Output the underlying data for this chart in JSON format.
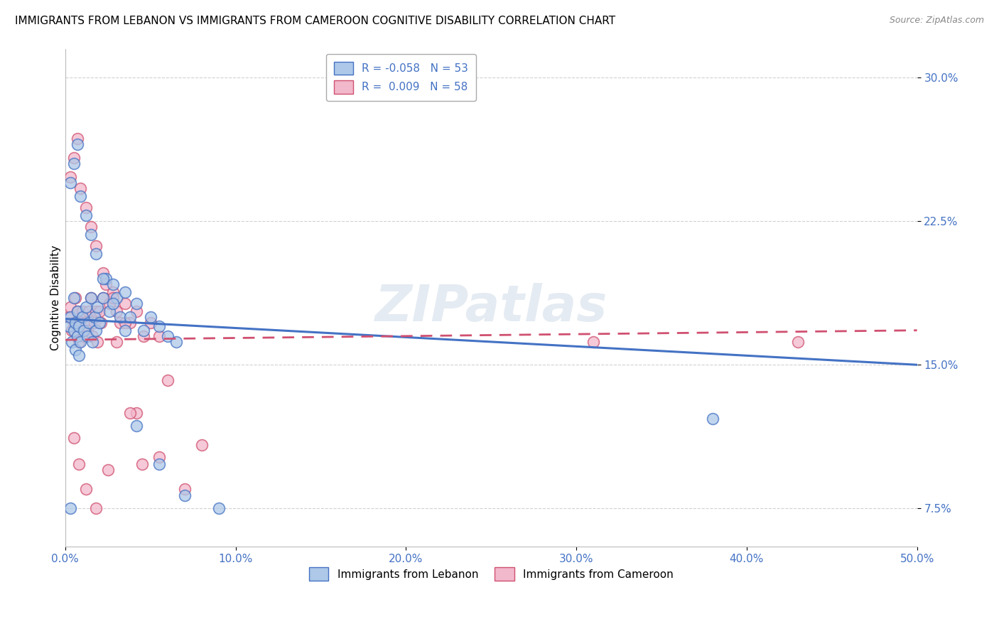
{
  "title": "IMMIGRANTS FROM LEBANON VS IMMIGRANTS FROM CAMEROON COGNITIVE DISABILITY CORRELATION CHART",
  "source": "Source: ZipAtlas.com",
  "ylabel": "Cognitive Disability",
  "legend_label1": "Immigrants from Lebanon",
  "legend_label2": "Immigrants from Cameroon",
  "R1": -0.058,
  "N1": 53,
  "R2": 0.009,
  "N2": 58,
  "color1": "#adc8e8",
  "color2": "#f2b8cc",
  "line_color1": "#4472c4",
  "line_color2": "#d05070",
  "xlim": [
    0,
    0.5
  ],
  "ylim": [
    0.055,
    0.315
  ],
  "xticks": [
    0.0,
    0.1,
    0.2,
    0.3,
    0.4,
    0.5
  ],
  "yticks": [
    0.075,
    0.15,
    0.225,
    0.3
  ],
  "xticklabels": [
    "0.0%",
    "10.0%",
    "20.0%",
    "30.0%",
    "40.0%",
    "50.0%"
  ],
  "yticklabels": [
    "7.5%",
    "15.0%",
    "22.5%",
    "30.0%"
  ],
  "background_color": "#ffffff",
  "grid_color": "#cccccc",
  "watermark": "ZIPatlas",
  "scatter1_x": [
    0.002,
    0.003,
    0.004,
    0.005,
    0.005,
    0.006,
    0.006,
    0.007,
    0.007,
    0.008,
    0.008,
    0.009,
    0.01,
    0.011,
    0.012,
    0.013,
    0.014,
    0.015,
    0.016,
    0.017,
    0.018,
    0.019,
    0.02,
    0.022,
    0.024,
    0.026,
    0.028,
    0.03,
    0.032,
    0.035,
    0.038,
    0.042,
    0.046,
    0.05,
    0.055,
    0.06,
    0.065,
    0.003,
    0.005,
    0.007,
    0.009,
    0.012,
    0.015,
    0.018,
    0.022,
    0.028,
    0.035,
    0.042,
    0.055,
    0.07,
    0.09,
    0.38,
    0.003
  ],
  "scatter1_y": [
    0.17,
    0.175,
    0.162,
    0.168,
    0.185,
    0.172,
    0.158,
    0.165,
    0.178,
    0.155,
    0.17,
    0.162,
    0.175,
    0.168,
    0.18,
    0.165,
    0.172,
    0.185,
    0.162,
    0.175,
    0.168,
    0.18,
    0.172,
    0.185,
    0.195,
    0.178,
    0.192,
    0.185,
    0.175,
    0.188,
    0.175,
    0.182,
    0.168,
    0.175,
    0.17,
    0.165,
    0.162,
    0.245,
    0.255,
    0.265,
    0.238,
    0.228,
    0.218,
    0.208,
    0.195,
    0.182,
    0.168,
    0.118,
    0.098,
    0.082,
    0.075,
    0.122,
    0.075
  ],
  "scatter2_x": [
    0.002,
    0.003,
    0.004,
    0.005,
    0.006,
    0.007,
    0.007,
    0.008,
    0.009,
    0.01,
    0.011,
    0.012,
    0.013,
    0.014,
    0.015,
    0.016,
    0.017,
    0.018,
    0.019,
    0.02,
    0.021,
    0.022,
    0.024,
    0.026,
    0.028,
    0.03,
    0.032,
    0.035,
    0.038,
    0.042,
    0.046,
    0.05,
    0.055,
    0.003,
    0.005,
    0.007,
    0.009,
    0.012,
    0.015,
    0.018,
    0.022,
    0.028,
    0.035,
    0.042,
    0.055,
    0.07,
    0.03,
    0.045,
    0.06,
    0.08,
    0.31,
    0.43,
    0.005,
    0.008,
    0.012,
    0.018,
    0.025,
    0.038
  ],
  "scatter2_y": [
    0.175,
    0.18,
    0.168,
    0.172,
    0.185,
    0.165,
    0.178,
    0.162,
    0.172,
    0.178,
    0.165,
    0.172,
    0.168,
    0.178,
    0.185,
    0.165,
    0.172,
    0.178,
    0.162,
    0.178,
    0.172,
    0.185,
    0.192,
    0.182,
    0.188,
    0.178,
    0.172,
    0.182,
    0.172,
    0.178,
    0.165,
    0.172,
    0.165,
    0.248,
    0.258,
    0.268,
    0.242,
    0.232,
    0.222,
    0.212,
    0.198,
    0.185,
    0.172,
    0.125,
    0.102,
    0.085,
    0.162,
    0.098,
    0.142,
    0.108,
    0.162,
    0.162,
    0.112,
    0.098,
    0.085,
    0.075,
    0.095,
    0.125
  ],
  "title_fontsize": 11,
  "axis_label_fontsize": 11,
  "tick_fontsize": 11,
  "legend_fontsize": 11,
  "trend1_x": [
    0.0,
    0.5
  ],
  "trend1_y": [
    0.174,
    0.15
  ],
  "trend2_x": [
    0.0,
    0.5
  ],
  "trend2_y": [
    0.163,
    0.168
  ]
}
